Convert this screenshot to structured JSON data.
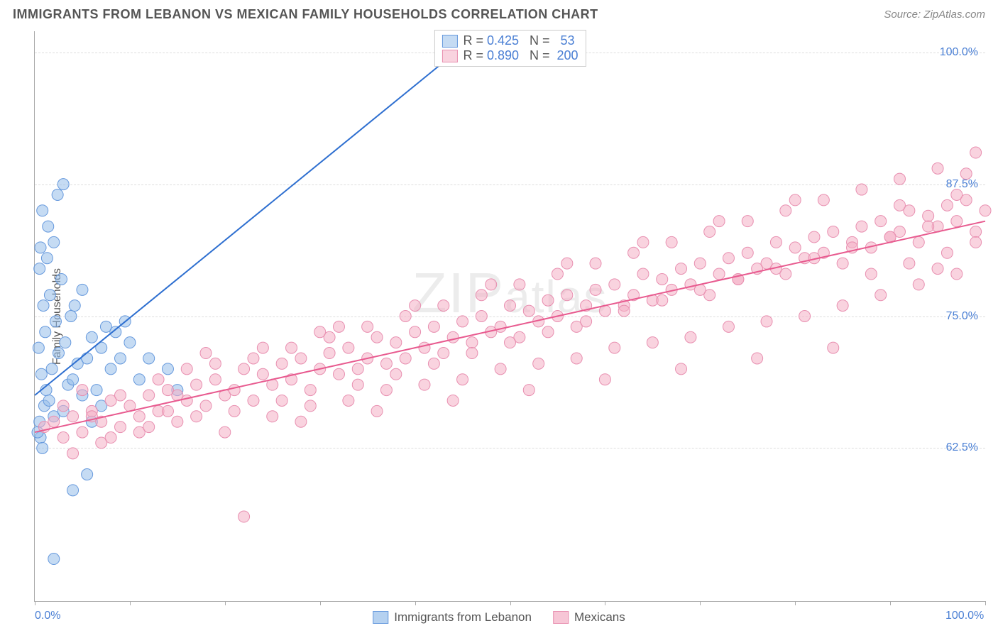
{
  "header": {
    "title": "IMMIGRANTS FROM LEBANON VS MEXICAN FAMILY HOUSEHOLDS CORRELATION CHART",
    "source_label": "Source: ",
    "source_value": "ZipAtlas.com"
  },
  "watermark": "ZIPatlas",
  "chart": {
    "type": "scatter",
    "y_axis_label": "Family Households",
    "xlim": [
      0,
      100
    ],
    "ylim": [
      48,
      102
    ],
    "x_ticks": [
      0,
      10,
      20,
      30,
      40,
      50,
      60,
      70,
      80,
      90,
      100
    ],
    "x_tick_labels": {
      "0": "0.0%",
      "100": "100.0%"
    },
    "y_grid": [
      62.5,
      75.0,
      87.5,
      100.0
    ],
    "y_tick_labels": [
      "62.5%",
      "75.0%",
      "87.5%",
      "100.0%"
    ],
    "background_color": "#ffffff",
    "grid_color": "#dddddd",
    "axis_color": "#aaaaaa",
    "tick_label_color": "#4a7fd4",
    "series": [
      {
        "name": "Immigrants from Lebanon",
        "marker_fill": "rgba(149,189,234,0.55)",
        "marker_stroke": "#6699dd",
        "marker_radius": 8,
        "line_color": "#2e6fd0",
        "line_width": 2,
        "stats": {
          "R": "0.425",
          "N": "53"
        },
        "trend": {
          "x1": 0,
          "y1": 67.5,
          "x2": 47,
          "y2": 102
        },
        "points": [
          [
            0.5,
            65
          ],
          [
            0.6,
            63.5
          ],
          [
            0.8,
            62.5
          ],
          [
            0.3,
            64
          ],
          [
            1,
            66.5
          ],
          [
            1.2,
            68
          ],
          [
            0.7,
            69.5
          ],
          [
            1.5,
            67
          ],
          [
            2,
            65.5
          ],
          [
            1.8,
            70
          ],
          [
            2.5,
            71.5
          ],
          [
            0.4,
            72
          ],
          [
            1.1,
            73.5
          ],
          [
            3,
            66
          ],
          [
            2.2,
            74.5
          ],
          [
            0.9,
            76
          ],
          [
            3.5,
            68.5
          ],
          [
            1.6,
            77
          ],
          [
            4,
            69
          ],
          [
            2.8,
            78.5
          ],
          [
            0.5,
            79.5
          ],
          [
            4.5,
            70.5
          ],
          [
            1.3,
            80.5
          ],
          [
            5,
            67.5
          ],
          [
            3.2,
            72.5
          ],
          [
            0.6,
            81.5
          ],
          [
            5.5,
            71
          ],
          [
            2,
            82
          ],
          [
            6,
            73
          ],
          [
            1.4,
            83.5
          ],
          [
            6.5,
            68
          ],
          [
            3.8,
            75
          ],
          [
            7,
            72
          ],
          [
            0.8,
            85
          ],
          [
            7.5,
            74
          ],
          [
            4.2,
            76
          ],
          [
            8,
            70
          ],
          [
            2.4,
            86.5
          ],
          [
            8.5,
            73.5
          ],
          [
            5,
            77.5
          ],
          [
            9,
            71
          ],
          [
            3,
            87.5
          ],
          [
            10,
            72.5
          ],
          [
            6,
            65
          ],
          [
            11,
            69
          ],
          [
            7,
            66.5
          ],
          [
            12,
            71
          ],
          [
            5.5,
            60
          ],
          [
            14,
            70
          ],
          [
            4,
            58.5
          ],
          [
            15,
            68
          ],
          [
            2,
            52
          ],
          [
            9.5,
            74.5
          ]
        ]
      },
      {
        "name": "Mexicans",
        "marker_fill": "rgba(244,174,197,0.55)",
        "marker_stroke": "#e88fb0",
        "marker_radius": 8,
        "line_color": "#e85a8f",
        "line_width": 2,
        "stats": {
          "R": "0.890",
          "N": "200"
        },
        "trend": {
          "x1": 0,
          "y1": 64,
          "x2": 100,
          "y2": 84
        },
        "points": [
          [
            1,
            64.5
          ],
          [
            2,
            65
          ],
          [
            3,
            63.5
          ],
          [
            4,
            65.5
          ],
          [
            5,
            64
          ],
          [
            6,
            66
          ],
          [
            7,
            65
          ],
          [
            8,
            67
          ],
          [
            9,
            64.5
          ],
          [
            10,
            66.5
          ],
          [
            11,
            65.5
          ],
          [
            12,
            67.5
          ],
          [
            13,
            66
          ],
          [
            14,
            68
          ],
          [
            15,
            65
          ],
          [
            16,
            67
          ],
          [
            17,
            68.5
          ],
          [
            18,
            66.5
          ],
          [
            19,
            69
          ],
          [
            20,
            67.5
          ],
          [
            21,
            68
          ],
          [
            22,
            70
          ],
          [
            23,
            67
          ],
          [
            24,
            69.5
          ],
          [
            25,
            68.5
          ],
          [
            26,
            70.5
          ],
          [
            27,
            69
          ],
          [
            28,
            71
          ],
          [
            29,
            68
          ],
          [
            30,
            70
          ],
          [
            31,
            71.5
          ],
          [
            32,
            69.5
          ],
          [
            33,
            72
          ],
          [
            34,
            70
          ],
          [
            35,
            71
          ],
          [
            36,
            73
          ],
          [
            37,
            70.5
          ],
          [
            38,
            72.5
          ],
          [
            39,
            71
          ],
          [
            40,
            73.5
          ],
          [
            41,
            72
          ],
          [
            42,
            74
          ],
          [
            43,
            71.5
          ],
          [
            44,
            73
          ],
          [
            45,
            74.5
          ],
          [
            46,
            72.5
          ],
          [
            47,
            75
          ],
          [
            48,
            73.5
          ],
          [
            49,
            74
          ],
          [
            50,
            76
          ],
          [
            51,
            73
          ],
          [
            52,
            75.5
          ],
          [
            53,
            74.5
          ],
          [
            54,
            76.5
          ],
          [
            55,
            75
          ],
          [
            56,
            77
          ],
          [
            57,
            74
          ],
          [
            58,
            76
          ],
          [
            59,
            77.5
          ],
          [
            60,
            75.5
          ],
          [
            61,
            78
          ],
          [
            62,
            76
          ],
          [
            63,
            77
          ],
          [
            64,
            79
          ],
          [
            65,
            76.5
          ],
          [
            66,
            78.5
          ],
          [
            67,
            77.5
          ],
          [
            68,
            79.5
          ],
          [
            69,
            78
          ],
          [
            70,
            80
          ],
          [
            71,
            77
          ],
          [
            72,
            79
          ],
          [
            73,
            80.5
          ],
          [
            74,
            78.5
          ],
          [
            75,
            81
          ],
          [
            76,
            79.5
          ],
          [
            77,
            80
          ],
          [
            78,
            82
          ],
          [
            79,
            79
          ],
          [
            80,
            81.5
          ],
          [
            81,
            80.5
          ],
          [
            82,
            82.5
          ],
          [
            83,
            81
          ],
          [
            84,
            83
          ],
          [
            85,
            80
          ],
          [
            86,
            82
          ],
          [
            87,
            83.5
          ],
          [
            88,
            81.5
          ],
          [
            89,
            84
          ],
          [
            90,
            82.5
          ],
          [
            91,
            83
          ],
          [
            92,
            85
          ],
          [
            93,
            82
          ],
          [
            94,
            84.5
          ],
          [
            95,
            83.5
          ],
          [
            96,
            85.5
          ],
          [
            97,
            84
          ],
          [
            98,
            86
          ],
          [
            99,
            83
          ],
          [
            100,
            85
          ],
          [
            3,
            66.5
          ],
          [
            5,
            68
          ],
          [
            7,
            63
          ],
          [
            9,
            67.5
          ],
          [
            11,
            64
          ],
          [
            13,
            69
          ],
          [
            15,
            67.5
          ],
          [
            17,
            65.5
          ],
          [
            19,
            70.5
          ],
          [
            21,
            66
          ],
          [
            23,
            71
          ],
          [
            25,
            65.5
          ],
          [
            27,
            72
          ],
          [
            29,
            66.5
          ],
          [
            31,
            73
          ],
          [
            33,
            67
          ],
          [
            35,
            74
          ],
          [
            37,
            68
          ],
          [
            39,
            75
          ],
          [
            41,
            68.5
          ],
          [
            43,
            76
          ],
          [
            45,
            69
          ],
          [
            47,
            77
          ],
          [
            49,
            70
          ],
          [
            51,
            78
          ],
          [
            53,
            70.5
          ],
          [
            55,
            79
          ],
          [
            57,
            71
          ],
          [
            59,
            80
          ],
          [
            61,
            72
          ],
          [
            63,
            81
          ],
          [
            65,
            72.5
          ],
          [
            67,
            82
          ],
          [
            69,
            73
          ],
          [
            71,
            83
          ],
          [
            73,
            74
          ],
          [
            75,
            84
          ],
          [
            77,
            74.5
          ],
          [
            79,
            85
          ],
          [
            81,
            75
          ],
          [
            83,
            86
          ],
          [
            85,
            76
          ],
          [
            87,
            87
          ],
          [
            89,
            77
          ],
          [
            91,
            88
          ],
          [
            93,
            78
          ],
          [
            95,
            89
          ],
          [
            97,
            79
          ],
          [
            99,
            90.5
          ],
          [
            98,
            88.5
          ],
          [
            4,
            62
          ],
          [
            8,
            63.5
          ],
          [
            12,
            64.5
          ],
          [
            16,
            70
          ],
          [
            20,
            64
          ],
          [
            24,
            72
          ],
          [
            28,
            65
          ],
          [
            32,
            74
          ],
          [
            36,
            66
          ],
          [
            40,
            76
          ],
          [
            44,
            67
          ],
          [
            48,
            78
          ],
          [
            52,
            68
          ],
          [
            56,
            80
          ],
          [
            60,
            69
          ],
          [
            64,
            82
          ],
          [
            68,
            70
          ],
          [
            72,
            84
          ],
          [
            76,
            71
          ],
          [
            80,
            86
          ],
          [
            84,
            72
          ],
          [
            88,
            79
          ],
          [
            92,
            80
          ],
          [
            96,
            81
          ],
          [
            22,
            56
          ],
          [
            6,
            65.5
          ],
          [
            14,
            66
          ],
          [
            18,
            71.5
          ],
          [
            26,
            67
          ],
          [
            30,
            73.5
          ],
          [
            34,
            68.5
          ],
          [
            38,
            69.5
          ],
          [
            42,
            70.5
          ],
          [
            46,
            71.5
          ],
          [
            50,
            72.5
          ],
          [
            54,
            73.5
          ],
          [
            58,
            74.5
          ],
          [
            62,
            75.5
          ],
          [
            66,
            76.5
          ],
          [
            70,
            77.5
          ],
          [
            74,
            78.5
          ],
          [
            78,
            79.5
          ],
          [
            82,
            80.5
          ],
          [
            86,
            81.5
          ],
          [
            90,
            82.5
          ],
          [
            94,
            83.5
          ],
          [
            97,
            86.5
          ],
          [
            99,
            82
          ],
          [
            95,
            79.5
          ],
          [
            91,
            85.5
          ]
        ]
      }
    ]
  },
  "bottom_legend": [
    {
      "label": "Immigrants from Lebanon",
      "fill": "rgba(149,189,234,0.7)",
      "stroke": "#6699dd"
    },
    {
      "label": "Mexicans",
      "fill": "rgba(244,174,197,0.7)",
      "stroke": "#e88fb0"
    }
  ]
}
